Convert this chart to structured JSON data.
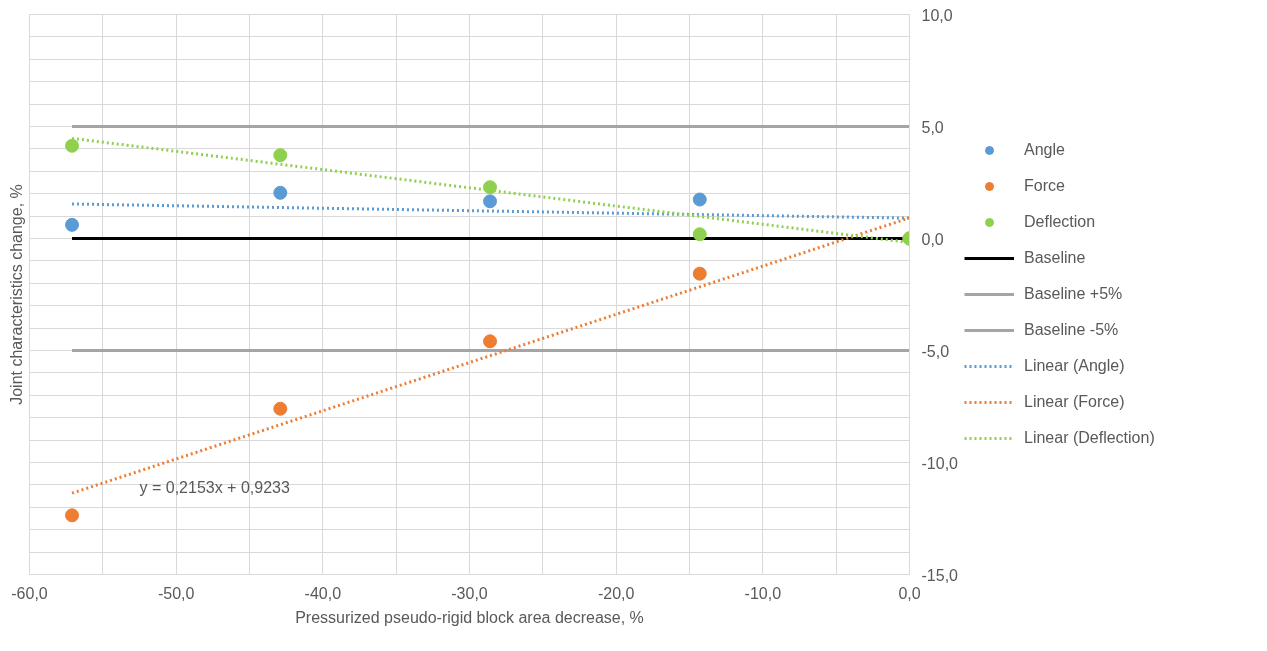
{
  "chart_data": {
    "type": "scatter",
    "xlabel": "Pressurized pseudo-rigid block area decrease, %",
    "ylabel": "Joint characteristics change, %",
    "xlim": [
      -60,
      0
    ],
    "ylim": [
      -15,
      10
    ],
    "xticks": [
      {
        "value": -60,
        "label": "-60,0"
      },
      {
        "value": -55,
        "label": null
      },
      {
        "value": -50,
        "label": "-50,0"
      },
      {
        "value": -45,
        "label": null
      },
      {
        "value": -40,
        "label": "-40,0"
      },
      {
        "value": -35,
        "label": null
      },
      {
        "value": -30,
        "label": "-30,0"
      },
      {
        "value": -25,
        "label": null
      },
      {
        "value": -20,
        "label": "-20,0"
      },
      {
        "value": -15,
        "label": null
      },
      {
        "value": -10,
        "label": "-10,0"
      },
      {
        "value": -5,
        "label": null
      },
      {
        "value": 0,
        "label": "0,0"
      }
    ],
    "yticks": [
      {
        "value": -15,
        "label": "-15,0"
      },
      {
        "value": -14,
        "label": null
      },
      {
        "value": -13,
        "label": null
      },
      {
        "value": -12,
        "label": null
      },
      {
        "value": -11,
        "label": null
      },
      {
        "value": -10,
        "label": "-10,0"
      },
      {
        "value": -9,
        "label": null
      },
      {
        "value": -8,
        "label": null
      },
      {
        "value": -7,
        "label": null
      },
      {
        "value": -6,
        "label": null
      },
      {
        "value": -5,
        "label": "-5,0"
      },
      {
        "value": -4,
        "label": null
      },
      {
        "value": -3,
        "label": null
      },
      {
        "value": -2,
        "label": null
      },
      {
        "value": -1,
        "label": null
      },
      {
        "value": 0,
        "label": "0,0"
      },
      {
        "value": 1,
        "label": null
      },
      {
        "value": 2,
        "label": null
      },
      {
        "value": 3,
        "label": null
      },
      {
        "value": 4,
        "label": null
      },
      {
        "value": 5,
        "label": "5,0"
      },
      {
        "value": 6,
        "label": null
      },
      {
        "value": 7,
        "label": null
      },
      {
        "value": 8,
        "label": null
      },
      {
        "value": 9,
        "label": null
      },
      {
        "value": 10,
        "label": "10,0"
      }
    ],
    "grid": true,
    "legend": "right",
    "annotations": [
      "y = 0,2153x + 0,9233"
    ],
    "series": [
      {
        "name": "Baseline",
        "type": "line",
        "line_style": "solid",
        "color": "#000000",
        "x": [
          -57.1,
          0
        ],
        "values": [
          0,
          0
        ]
      },
      {
        "name": "Baseline +5%",
        "type": "line",
        "line_style": "solid",
        "color": "#a5a5a5",
        "x": [
          -57.1,
          0
        ],
        "values": [
          5,
          5
        ]
      },
      {
        "name": "Baseline -5%",
        "type": "line",
        "line_style": "solid",
        "color": "#a5a5a5",
        "x": [
          -57.1,
          0
        ],
        "values": [
          -5,
          -5
        ]
      },
      {
        "name": "Linear (Angle)",
        "type": "line",
        "line_style": "dotted",
        "color": "#5b9bd5",
        "x": [
          -57.1,
          0
        ],
        "values": [
          1.54,
          0.91
        ]
      },
      {
        "name": "Linear (Force)",
        "type": "line",
        "line_style": "dotted",
        "color": "#ed7d31",
        "x": [
          -57.1,
          0
        ],
        "values": [
          -11.37,
          0.92
        ]
      },
      {
        "name": "Linear (Deflection)",
        "type": "line",
        "line_style": "dotted",
        "color": "#8fd14f",
        "x": [
          -57.1,
          0
        ],
        "values": [
          4.47,
          -0.18
        ]
      },
      {
        "name": "Angle",
        "color": "#5b9bd5",
        "x": [
          -57.1,
          -42.9,
          -28.6,
          -14.3,
          0
        ],
        "values": [
          0.61,
          2.04,
          1.66,
          1.74,
          0
        ]
      },
      {
        "name": "Force",
        "color": "#ed7d31",
        "x": [
          -57.1,
          -42.9,
          -28.6,
          -14.3,
          0
        ],
        "values": [
          -12.36,
          -7.6,
          -4.59,
          -1.57,
          0
        ]
      },
      {
        "name": "Deflection",
        "color": "#8fd14f",
        "x": [
          -57.1,
          -42.9,
          -28.6,
          -14.3,
          0
        ],
        "values": [
          4.14,
          3.72,
          2.29,
          0.19,
          0
        ]
      }
    ]
  }
}
